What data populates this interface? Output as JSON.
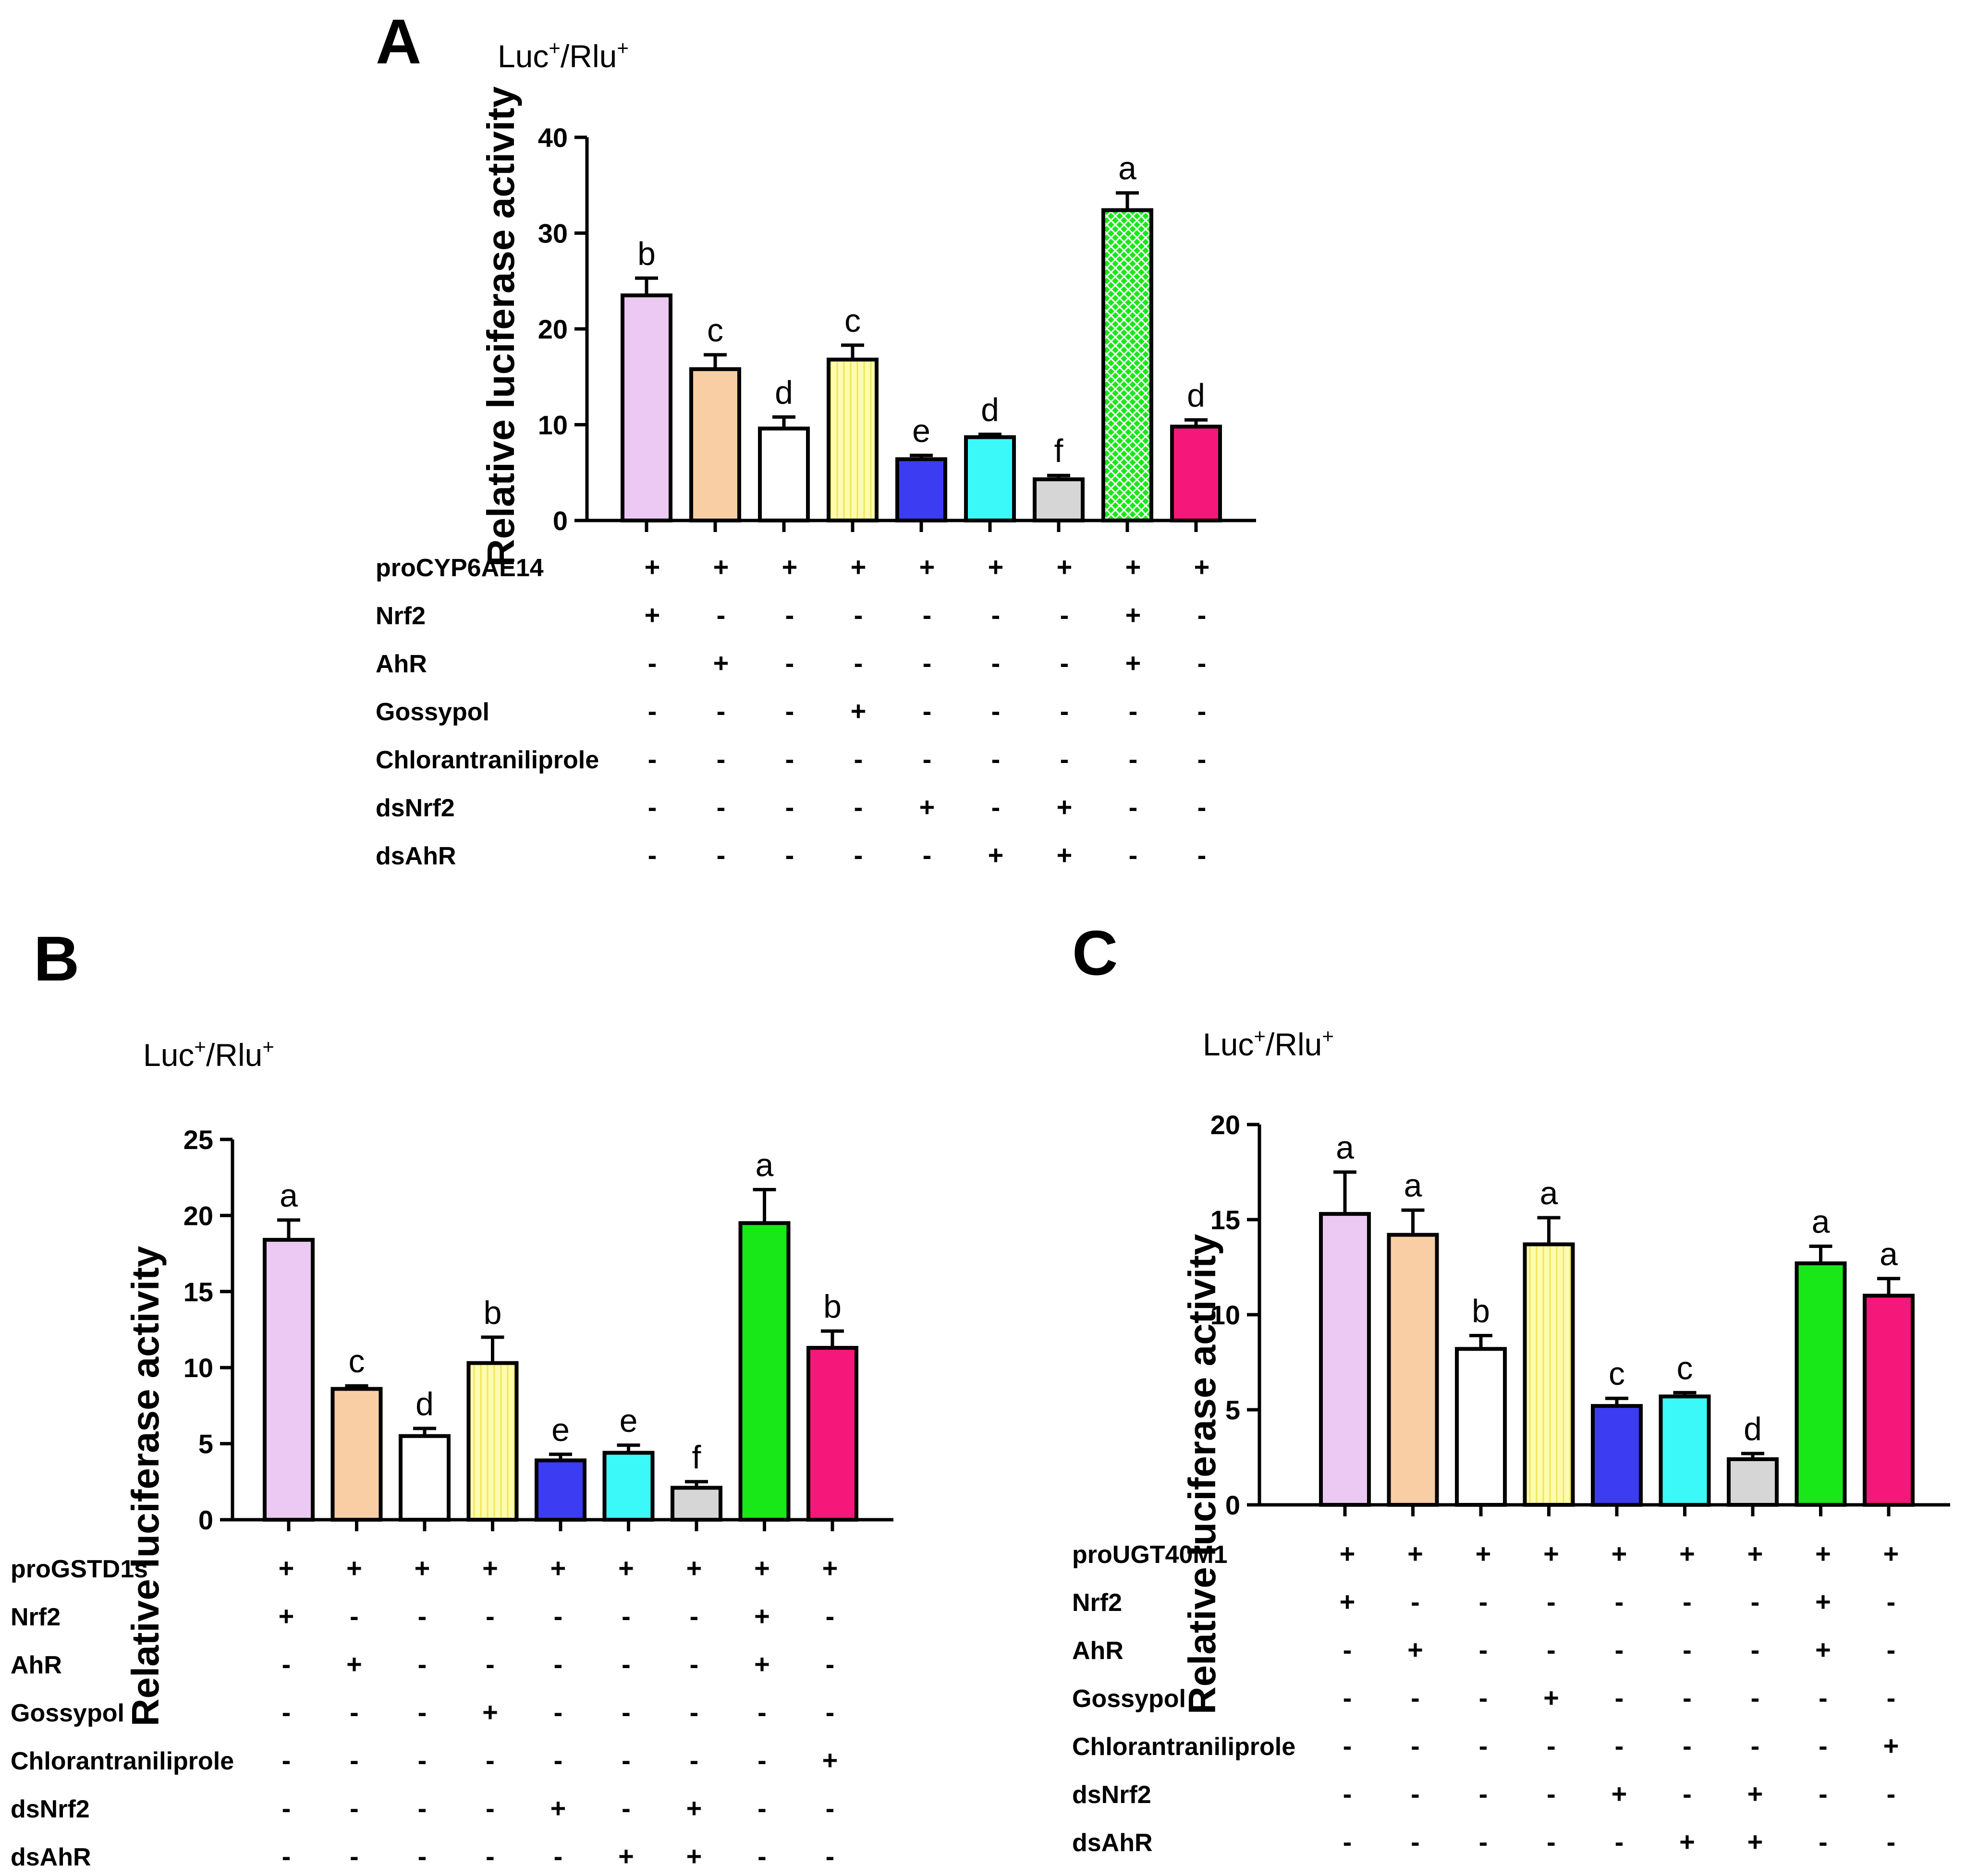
{
  "panels": [
    {
      "letter": "A",
      "unit_base": "Luc",
      "unit_sup1": "+",
      "unit_mid": "/Rlu",
      "unit_sup2": "+",
      "ylabel": "Relative luciferase activity"
    },
    {
      "letter": "B",
      "unit_base": "Luc",
      "unit_sup1": "+",
      "unit_mid": "/Rlu",
      "unit_sup2": "+",
      "ylabel": "Relative luciferase activity"
    },
    {
      "letter": "C",
      "unit_base": "Luc",
      "unit_sup1": "+",
      "unit_mid": "/Rlu",
      "unit_sup2": "+",
      "ylabel": "Relative luciferase activity"
    }
  ],
  "chart_data": [
    {
      "type": "bar",
      "panel": "A",
      "ylabel": "Relative luciferase activity",
      "ylim": [
        0,
        40
      ],
      "yticks": [
        0,
        10,
        20,
        30,
        40
      ],
      "values": [
        23.5,
        15.8,
        9.6,
        16.8,
        6.4,
        8.7,
        4.3,
        32.4,
        9.8
      ],
      "errors": [
        1.8,
        1.5,
        1.2,
        1.5,
        0.4,
        0.3,
        0.4,
        1.8,
        0.7
      ],
      "significance": [
        "b",
        "c",
        "d",
        "c",
        "e",
        "d",
        "f",
        "a",
        "d"
      ],
      "colors": [
        "#ebc9f2",
        "#f9cea4",
        "#ffffff",
        "#fdfcae",
        "#3c3cf2",
        "#3cf9f9",
        "#d6d6d6",
        "#18e818",
        "#f5187a"
      ],
      "patterns": [
        "none",
        "none",
        "none",
        "vstripe",
        "none",
        "none",
        "none",
        "crosshatch",
        "none"
      ],
      "treatments": [
        {
          "label": "proCYP6AE14",
          "marks": [
            "+",
            "+",
            "+",
            "+",
            "+",
            "+",
            "+",
            "+",
            "+"
          ]
        },
        {
          "label": "Nrf2",
          "marks": [
            "+",
            "-",
            "-",
            "-",
            "-",
            "-",
            "-",
            "+",
            "-"
          ]
        },
        {
          "label": "AhR",
          "marks": [
            "-",
            "+",
            "-",
            "-",
            "-",
            "-",
            "-",
            "+",
            "-"
          ]
        },
        {
          "label": "Gossypol",
          "marks": [
            "-",
            "-",
            "-",
            "+",
            "-",
            "-",
            "-",
            "-",
            "-"
          ]
        },
        {
          "label": "Chlorantraniliprole",
          "marks": [
            "-",
            "-",
            "-",
            "-",
            "-",
            "-",
            "-",
            "-",
            "-"
          ]
        },
        {
          "label": "dsNrf2",
          "marks": [
            "-",
            "-",
            "-",
            "-",
            "+",
            "-",
            "+",
            "-",
            "-"
          ]
        },
        {
          "label": "dsAhR",
          "marks": [
            "-",
            "-",
            "-",
            "-",
            "-",
            "+",
            "+",
            "-",
            "-"
          ]
        }
      ],
      "grid": false
    },
    {
      "type": "bar",
      "panel": "B",
      "ylabel": "Relative luciferase activity",
      "ylim": [
        0,
        25
      ],
      "yticks": [
        0,
        5,
        10,
        15,
        20,
        25
      ],
      "values": [
        18.4,
        8.6,
        5.5,
        10.3,
        3.9,
        4.4,
        2.1,
        19.5,
        11.3
      ],
      "errors": [
        1.3,
        0.2,
        0.5,
        1.7,
        0.4,
        0.5,
        0.4,
        2.2,
        1.1
      ],
      "significance": [
        "a",
        "c",
        "d",
        "b",
        "e",
        "e",
        "f",
        "a",
        "b"
      ],
      "colors": [
        "#ebc9f2",
        "#f9cea4",
        "#ffffff",
        "#fdfcae",
        "#3c3cf2",
        "#3cf9f9",
        "#d6d6d6",
        "#18e818",
        "#f5187a"
      ],
      "patterns": [
        "none",
        "none",
        "none",
        "vstripe",
        "none",
        "none",
        "none",
        "none",
        "none"
      ],
      "treatments": [
        {
          "label": "proGSTD1s",
          "marks": [
            "+",
            "+",
            "+",
            "+",
            "+",
            "+",
            "+",
            "+",
            "+"
          ]
        },
        {
          "label": "Nrf2",
          "marks": [
            "+",
            "-",
            "-",
            "-",
            "-",
            "-",
            "-",
            "+",
            "-"
          ]
        },
        {
          "label": "AhR",
          "marks": [
            "-",
            "+",
            "-",
            "-",
            "-",
            "-",
            "-",
            "+",
            "-"
          ]
        },
        {
          "label": "Gossypol",
          "marks": [
            "-",
            "-",
            "-",
            "+",
            "-",
            "-",
            "-",
            "-",
            "-"
          ]
        },
        {
          "label": "Chlorantraniliprole",
          "marks": [
            "-",
            "-",
            "-",
            "-",
            "-",
            "-",
            "-",
            "-",
            "+"
          ]
        },
        {
          "label": "dsNrf2",
          "marks": [
            "-",
            "-",
            "-",
            "-",
            "+",
            "-",
            "+",
            "-",
            "-"
          ]
        },
        {
          "label": "dsAhR",
          "marks": [
            "-",
            "-",
            "-",
            "-",
            "-",
            "+",
            "+",
            "-",
            "-"
          ]
        }
      ],
      "grid": false
    },
    {
      "type": "bar",
      "panel": "C",
      "ylabel": "Relative luciferase activity",
      "ylim": [
        0,
        20
      ],
      "yticks": [
        0,
        5,
        10,
        15,
        20
      ],
      "values": [
        15.3,
        14.2,
        8.2,
        13.7,
        5.2,
        5.7,
        2.4,
        12.7,
        11.0
      ],
      "errors": [
        2.2,
        1.3,
        0.7,
        1.4,
        0.4,
        0.2,
        0.3,
        0.9,
        0.9
      ],
      "significance": [
        "a",
        "a",
        "b",
        "a",
        "c",
        "c",
        "d",
        "a",
        "a"
      ],
      "colors": [
        "#ebc9f2",
        "#f9cea4",
        "#ffffff",
        "#fdfcae",
        "#3c3cf2",
        "#3cf9f9",
        "#d6d6d6",
        "#18e818",
        "#f5187a"
      ],
      "patterns": [
        "none",
        "none",
        "none",
        "vstripe",
        "none",
        "none",
        "none",
        "none",
        "none"
      ],
      "treatments": [
        {
          "label": "proUGT40M1",
          "marks": [
            "+",
            "+",
            "+",
            "+",
            "+",
            "+",
            "+",
            "+",
            "+"
          ]
        },
        {
          "label": "Nrf2",
          "marks": [
            "+",
            "-",
            "-",
            "-",
            "-",
            "-",
            "-",
            "+",
            "-"
          ]
        },
        {
          "label": "AhR",
          "marks": [
            "-",
            "+",
            "-",
            "-",
            "-",
            "-",
            "-",
            "+",
            "-"
          ]
        },
        {
          "label": "Gossypol",
          "marks": [
            "-",
            "-",
            "-",
            "+",
            "-",
            "-",
            "-",
            "-",
            "-"
          ]
        },
        {
          "label": "Chlorantraniliprole",
          "marks": [
            "-",
            "-",
            "-",
            "-",
            "-",
            "-",
            "-",
            "-",
            "+"
          ]
        },
        {
          "label": "dsNrf2",
          "marks": [
            "-",
            "-",
            "-",
            "-",
            "+",
            "-",
            "+",
            "-",
            "-"
          ]
        },
        {
          "label": "dsAhR",
          "marks": [
            "-",
            "-",
            "-",
            "-",
            "-",
            "+",
            "+",
            "-",
            "-"
          ]
        }
      ],
      "grid": false
    }
  ]
}
